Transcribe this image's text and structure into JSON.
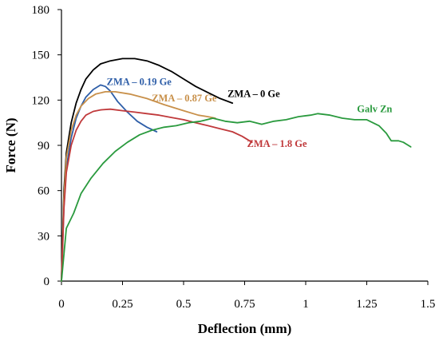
{
  "chart_data": {
    "type": "line",
    "title": "",
    "xlabel": "Deflection (mm)",
    "ylabel": "Force (N)",
    "xlim": [
      0,
      1.5
    ],
    "ylim": [
      0,
      180
    ],
    "xticks": [
      0,
      0.25,
      0.5,
      0.75,
      1,
      1.25,
      1.5
    ],
    "xtick_labels": [
      "0",
      "0.25",
      "0.5",
      "0.75",
      "1",
      "1.25",
      "1.5"
    ],
    "yticks": [
      0,
      30,
      60,
      90,
      120,
      150,
      180
    ],
    "ytick_labels": [
      "0",
      "30",
      "60",
      "90",
      "120",
      "150",
      "180"
    ],
    "grid": false,
    "legend": "none (series labelled directly on the chart)",
    "series": [
      {
        "name": "ZMA – 0 Ge",
        "color": "#000000",
        "points": [
          [
            0,
            0
          ],
          [
            0.01,
            60
          ],
          [
            0.02,
            85
          ],
          [
            0.04,
            105
          ],
          [
            0.06,
            118
          ],
          [
            0.08,
            127
          ],
          [
            0.1,
            134
          ],
          [
            0.13,
            140
          ],
          [
            0.16,
            144
          ],
          [
            0.2,
            146
          ],
          [
            0.25,
            147.5
          ],
          [
            0.3,
            147.5
          ],
          [
            0.35,
            146
          ],
          [
            0.4,
            143
          ],
          [
            0.45,
            139
          ],
          [
            0.5,
            134
          ],
          [
            0.55,
            129
          ],
          [
            0.6,
            125
          ],
          [
            0.65,
            121
          ],
          [
            0.7,
            118
          ]
        ]
      },
      {
        "name": "ZMA – 0.19 Ge",
        "color": "#2e5ea8",
        "points": [
          [
            0,
            0
          ],
          [
            0.01,
            50
          ],
          [
            0.02,
            75
          ],
          [
            0.04,
            95
          ],
          [
            0.06,
            108
          ],
          [
            0.08,
            116
          ],
          [
            0.1,
            122
          ],
          [
            0.13,
            127
          ],
          [
            0.16,
            130
          ],
          [
            0.18,
            129
          ],
          [
            0.2,
            126
          ],
          [
            0.23,
            119
          ],
          [
            0.27,
            112
          ],
          [
            0.31,
            106
          ],
          [
            0.35,
            102
          ],
          [
            0.39,
            99
          ]
        ]
      },
      {
        "name": "ZMA – 0.87 Ge",
        "color": "#c8904a",
        "points": [
          [
            0,
            0
          ],
          [
            0.01,
            55
          ],
          [
            0.02,
            82
          ],
          [
            0.04,
            100
          ],
          [
            0.06,
            110
          ],
          [
            0.08,
            116
          ],
          [
            0.11,
            121
          ],
          [
            0.14,
            124
          ],
          [
            0.18,
            125.5
          ],
          [
            0.22,
            125.5
          ],
          [
            0.28,
            124
          ],
          [
            0.35,
            121
          ],
          [
            0.42,
            117
          ],
          [
            0.5,
            113
          ],
          [
            0.56,
            110
          ],
          [
            0.6,
            109
          ],
          [
            0.63,
            108
          ]
        ]
      },
      {
        "name": "ZMA – 1.8 Ge",
        "color": "#c0393b",
        "points": [
          [
            0,
            0
          ],
          [
            0.01,
            48
          ],
          [
            0.02,
            72
          ],
          [
            0.04,
            90
          ],
          [
            0.06,
            100
          ],
          [
            0.08,
            106
          ],
          [
            0.1,
            110
          ],
          [
            0.13,
            112.5
          ],
          [
            0.16,
            113.5
          ],
          [
            0.2,
            114
          ],
          [
            0.25,
            113
          ],
          [
            0.3,
            112
          ],
          [
            0.35,
            111
          ],
          [
            0.4,
            110
          ],
          [
            0.45,
            108.5
          ],
          [
            0.5,
            107
          ],
          [
            0.55,
            105
          ],
          [
            0.6,
            103
          ],
          [
            0.65,
            101
          ],
          [
            0.7,
            99
          ],
          [
            0.74,
            96
          ],
          [
            0.78,
            92
          ]
        ]
      },
      {
        "name": "Galv Zn",
        "color": "#2a9a3e",
        "points": [
          [
            0,
            0
          ],
          [
            0.02,
            35
          ],
          [
            0.05,
            45
          ],
          [
            0.08,
            58
          ],
          [
            0.12,
            68
          ],
          [
            0.17,
            78
          ],
          [
            0.22,
            86
          ],
          [
            0.27,
            92
          ],
          [
            0.32,
            97
          ],
          [
            0.37,
            100
          ],
          [
            0.42,
            102
          ],
          [
            0.47,
            103
          ],
          [
            0.52,
            105
          ],
          [
            0.57,
            106
          ],
          [
            0.62,
            108
          ],
          [
            0.67,
            106
          ],
          [
            0.72,
            105
          ],
          [
            0.77,
            106
          ],
          [
            0.82,
            104
          ],
          [
            0.87,
            106
          ],
          [
            0.92,
            107
          ],
          [
            0.97,
            109
          ],
          [
            1.02,
            110
          ],
          [
            1.05,
            111
          ],
          [
            1.1,
            110
          ],
          [
            1.15,
            108
          ],
          [
            1.2,
            107
          ],
          [
            1.25,
            107
          ],
          [
            1.3,
            103
          ],
          [
            1.33,
            98
          ],
          [
            1.35,
            93
          ],
          [
            1.38,
            93
          ],
          [
            1.4,
            92
          ],
          [
            1.43,
            89
          ]
        ]
      }
    ],
    "annotations": [
      {
        "text": "ZMA – 0 Ge",
        "x": 0.68,
        "y": 122,
        "color": "#000000"
      },
      {
        "text": "ZMA – 0.19 Ge",
        "x": 0.185,
        "y": 130,
        "color": "#2e5ea8"
      },
      {
        "text": "ZMA – 0.87 Ge",
        "x": 0.37,
        "y": 119,
        "color": "#c8904a"
      },
      {
        "text": "ZMA – 1.8 Ge",
        "x": 0.76,
        "y": 89,
        "color": "#c0393b"
      },
      {
        "text": "Galv Zn",
        "x": 1.21,
        "y": 112,
        "color": "#2a9a3e"
      }
    ]
  }
}
